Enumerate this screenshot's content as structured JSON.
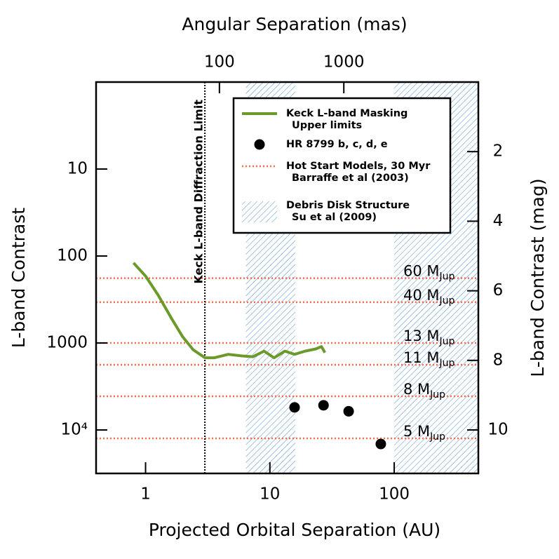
{
  "chart_data": {
    "type": "line",
    "xlabel": "Projected Orbital Separation (AU)",
    "x2label": "Angular Separation (mas)",
    "ylabel": "L-band Contrast",
    "y2label": "L-band Contrast (mag)",
    "xscale": "log",
    "yscale": "log",
    "xlim": [
      0.4,
      475
    ],
    "xticks": [
      1,
      10,
      100
    ],
    "x2lim": [
      10.2,
      12060
    ],
    "x2ticks": [
      100,
      1000
    ],
    "ylim": [
      31600,
      1
    ],
    "yticks": [
      10,
      100,
      1000,
      {
        "value": 10000,
        "label": "10⁴"
      }
    ],
    "y2lim": [
      11.25,
      0
    ],
    "y2ticks": [
      2,
      4,
      6,
      8,
      10
    ],
    "legend": "upper right",
    "series": [
      {
        "name": [
          "Keck L-band Masking",
          "Upper limits"
        ],
        "kind": "line",
        "color": "#6b9a2a",
        "x": [
          0.8,
          1.0,
          1.26,
          1.64,
          1.99,
          2.42,
          3.01,
          3.56,
          4.62,
          5.99,
          7.29,
          8.98,
          10.8,
          13.2,
          15.8,
          19.2,
          23.4,
          26.0,
          27.7
        ],
        "values": [
          120,
          170,
          280,
          540,
          850,
          1200,
          1480,
          1480,
          1350,
          1410,
          1440,
          1240,
          1480,
          1240,
          1350,
          1240,
          1170,
          1100,
          1290
        ]
      },
      {
        "name": [
          "HR 8799 b, c, d, e"
        ],
        "kind": "scatter",
        "color": "#000000",
        "x": [
          15.8,
          27,
          43,
          78
        ],
        "values": [
          5500,
          5200,
          6100,
          14500
        ]
      }
    ],
    "models": {
      "name": [
        "Hot Start Models, 30 Myr",
        "Barraffe et al (2003)"
      ],
      "color": "#ff6a4d",
      "values": [
        180,
        340,
        1000,
        1780,
        4100,
        12500
      ],
      "labels": [
        "60 M",
        "40 M",
        "13 M",
        "11 M",
        "8 M",
        "5 M"
      ],
      "label_sub": [
        "Jup",
        "Jup",
        "Jup",
        "Jup",
        "Jup",
        "Jup"
      ]
    },
    "regions": {
      "name": [
        "Debris Disk Structure",
        "Su et al (2009)"
      ],
      "color": "#4a8fd8",
      "spans": [
        [
          6.4,
          16
        ],
        [
          100,
          475
        ]
      ]
    },
    "diffraction_limit": {
      "value": 3.0,
      "label": "Keck L-band Diffraction Limit"
    }
  }
}
